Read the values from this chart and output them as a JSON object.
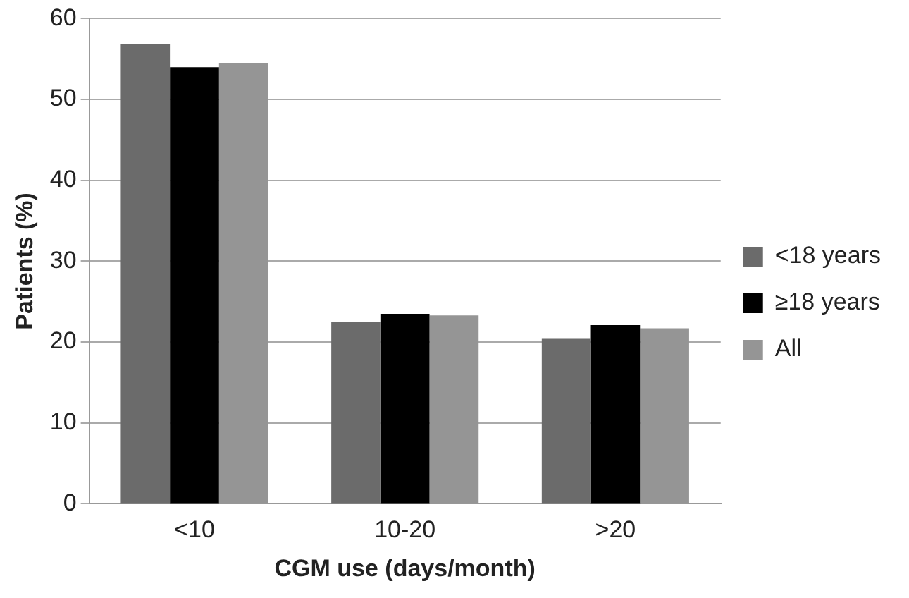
{
  "chart_data": {
    "type": "bar",
    "xlabel": "CGM use (days/month)",
    "ylabel": "Patients (%)",
    "categories": [
      "<10",
      "10-20",
      ">20"
    ],
    "series": [
      {
        "name": "<18 years",
        "color": "#6b6b6b",
        "values": [
          56.8,
          22.5,
          20.4
        ]
      },
      {
        "name": "≥18 years",
        "color": "#000000",
        "values": [
          54.0,
          23.5,
          22.1
        ]
      },
      {
        "name": "All",
        "color": "#959595",
        "values": [
          54.5,
          23.3,
          21.7
        ]
      }
    ],
    "ylim": [
      0,
      60
    ],
    "yticks": [
      0,
      10,
      20,
      30,
      40,
      50,
      60
    ],
    "grid": "y",
    "legend": "right"
  }
}
